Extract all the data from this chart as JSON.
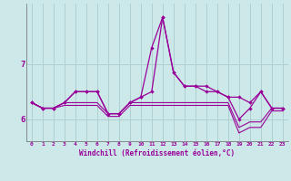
{
  "background_color": "#cce8e8",
  "grid_color": "#aacccc",
  "line_color": "#990099",
  "x_values": [
    0,
    1,
    2,
    3,
    4,
    5,
    6,
    7,
    8,
    9,
    10,
    11,
    12,
    13,
    14,
    15,
    16,
    17,
    18,
    19,
    20,
    21,
    22,
    23
  ],
  "series1": [
    6.3,
    6.2,
    6.2,
    6.3,
    6.5,
    6.5,
    6.5,
    6.1,
    6.1,
    6.3,
    6.4,
    7.3,
    7.85,
    6.85,
    6.6,
    6.6,
    6.6,
    6.5,
    6.4,
    6.4,
    6.3,
    6.5,
    6.2,
    6.2
  ],
  "series2": [
    6.3,
    6.2,
    6.2,
    6.3,
    6.5,
    6.5,
    6.5,
    6.1,
    6.1,
    6.3,
    6.4,
    6.5,
    7.85,
    6.85,
    6.6,
    6.6,
    6.5,
    6.5,
    6.4,
    6.0,
    6.2,
    6.5,
    6.2,
    6.2
  ],
  "series3": [
    6.3,
    6.2,
    6.2,
    6.3,
    6.3,
    6.3,
    6.3,
    6.1,
    6.1,
    6.3,
    6.3,
    6.3,
    6.3,
    6.3,
    6.3,
    6.3,
    6.3,
    6.3,
    6.3,
    5.85,
    5.95,
    5.95,
    6.2,
    6.2
  ],
  "series4": [
    6.3,
    6.2,
    6.2,
    6.25,
    6.25,
    6.25,
    6.25,
    6.05,
    6.05,
    6.25,
    6.25,
    6.25,
    6.25,
    6.25,
    6.25,
    6.25,
    6.25,
    6.25,
    6.25,
    5.75,
    5.85,
    5.85,
    6.15,
    6.15
  ],
  "ylim": [
    5.6,
    8.1
  ],
  "yticks": [
    6,
    7
  ],
  "xlim": [
    -0.5,
    23.5
  ],
  "xlabel": "Windchill (Refroidissement éolien,°C)"
}
